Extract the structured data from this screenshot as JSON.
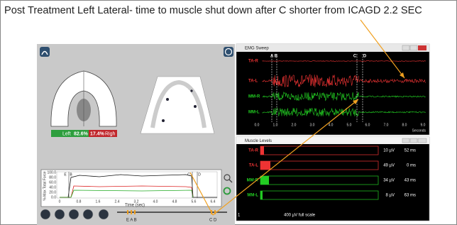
{
  "title": "Post Treatment Left Lateral- time to muscle shut down after C shorter from ICAGD 2.2 SEC",
  "occlusion_panel": {
    "left_label": "Left",
    "left_percent": "82.6%",
    "right_percent": "17.4%",
    "right_label": "Righ"
  },
  "force_chart": {
    "y_axis_label": "% Max Total Force",
    "y_ticks": [
      "100.0",
      "80.0",
      "60.0",
      "40.0",
      "20.0",
      "0.0"
    ],
    "x_ticks": [
      "0",
      "0.8",
      "1.6",
      "2.4",
      "3.2",
      "4.0",
      "4.8",
      "5.6",
      "6.4"
    ],
    "x_axis_label": "Time (sec)",
    "markers": [
      "E",
      "B",
      "C",
      "D"
    ]
  },
  "playback": {
    "markers_left": "E A B",
    "markers_right": "C D"
  },
  "emg_sweep": {
    "title": "EMG Sweep",
    "channels": [
      "TA-R",
      "TA-L",
      "MM-R",
      "MM-L"
    ],
    "event_markers": [
      "A B",
      "C",
      "D"
    ],
    "x_ticks": [
      "0.0",
      "1.0",
      "2.0",
      "3.0",
      "4.0",
      "5.0",
      "6.0",
      "7.0",
      "8.0",
      "9.0"
    ],
    "x_axis_label": "Seconds"
  },
  "muscle_levels": {
    "title": "Muscle Levels",
    "rows": [
      {
        "channel": "TA-R",
        "amplitude": "10 µV",
        "duration": "52 ms"
      },
      {
        "channel": "TA-L",
        "amplitude": "49 µV",
        "duration": "0 ms"
      },
      {
        "channel": "MM-R",
        "amplitude": "34 µV",
        "duration": "43 ms"
      },
      {
        "channel": "MM-L",
        "amplitude": "8 µV",
        "duration": "63 ms"
      }
    ],
    "scale_note": "400 µV full scale",
    "footer": "1"
  }
}
